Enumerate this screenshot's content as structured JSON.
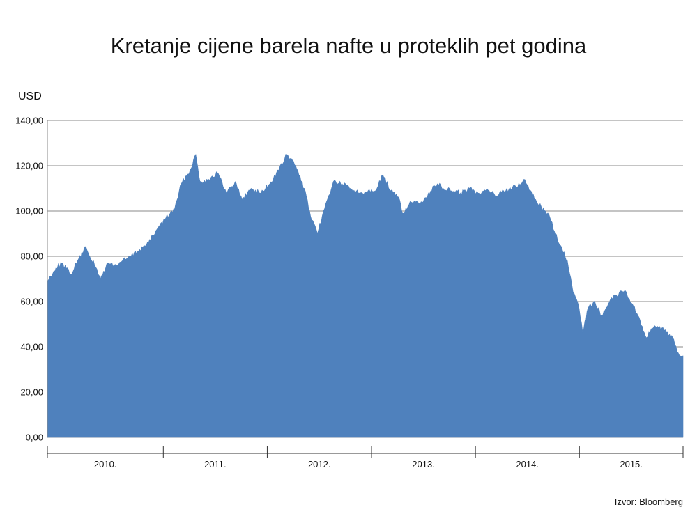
{
  "title": "Kretanje cijene barela nafte u proteklih pet godina",
  "source": "Izvor: Bloomberg",
  "chart_data": {
    "type": "area",
    "title": "Kretanje cijene barela nafte u proteklih pet godina",
    "ylabel": "USD",
    "xlabel": "",
    "ylim": [
      0,
      140
    ],
    "yticks": [
      "0,00",
      "20,00",
      "40,00",
      "60,00",
      "80,00",
      "100,00",
      "120,00",
      "140,00"
    ],
    "xlim": [
      "2009-11-20",
      "2015-12-31"
    ],
    "year_labels": [
      "2010.",
      "2011.",
      "2012.",
      "2013.",
      "2014.",
      "2015."
    ],
    "year_boundaries": [
      "2010-01-01",
      "2011-01-01",
      "2012-01-01",
      "2013-01-01",
      "2014-01-01",
      "2015-01-01"
    ],
    "grid": true,
    "fill_color": "#4f81bd",
    "series": [
      {
        "x": [
          "2009-11-20",
          "2009-12-20",
          "2010-01-10",
          "2010-02-10",
          "2010-03-10",
          "2010-04-05",
          "2010-05-05",
          "2010-05-25",
          "2010-06-20",
          "2010-07-20",
          "2010-08-10",
          "2010-09-10",
          "2010-10-10",
          "2010-11-10",
          "2010-12-10",
          "2011-01-10",
          "2011-02-10",
          "2011-03-05",
          "2011-04-05",
          "2011-04-25",
          "2011-05-10",
          "2011-06-10",
          "2011-07-10",
          "2011-08-10",
          "2011-09-10",
          "2011-10-05",
          "2011-11-05",
          "2011-12-10",
          "2012-01-10",
          "2012-02-10",
          "2012-03-10",
          "2012-04-10",
          "2012-05-10",
          "2012-06-05",
          "2012-06-25",
          "2012-07-20",
          "2012-08-20",
          "2012-09-20",
          "2012-10-20",
          "2012-11-20",
          "2012-12-20",
          "2013-01-20",
          "2013-02-10",
          "2013-03-10",
          "2013-04-10",
          "2013-04-20",
          "2013-05-20",
          "2013-06-20",
          "2013-07-20",
          "2013-08-20",
          "2013-09-10",
          "2013-10-10",
          "2013-11-10",
          "2013-12-10",
          "2014-01-10",
          "2014-02-10",
          "2014-03-10",
          "2014-04-10",
          "2014-05-10",
          "2014-06-10",
          "2014-06-20",
          "2014-07-20",
          "2014-08-20",
          "2014-09-20",
          "2014-10-20",
          "2014-11-20",
          "2014-12-10",
          "2014-12-31",
          "2015-01-13",
          "2015-01-31",
          "2015-02-20",
          "2015-03-20",
          "2015-04-20",
          "2015-05-10",
          "2015-06-10",
          "2015-07-10",
          "2015-08-10",
          "2015-08-24",
          "2015-09-10",
          "2015-10-10",
          "2015-11-10",
          "2015-11-25",
          "2015-12-10",
          "2015-12-31"
        ],
        "y": [
          69,
          75,
          77,
          72,
          79,
          84,
          76,
          70,
          77,
          76,
          78,
          80,
          83,
          86,
          92,
          97,
          101,
          112,
          118,
          125,
          113,
          114,
          117,
          108,
          113,
          105,
          110,
          108,
          112,
          118,
          125,
          120,
          110,
          96,
          90,
          101,
          113,
          112,
          110,
          108,
          109,
          110,
          116,
          109,
          105,
          99,
          104,
          103,
          108,
          112,
          110,
          109,
          108,
          110,
          108,
          110,
          107,
          109,
          110,
          112,
          114,
          107,
          102,
          97,
          86,
          78,
          64,
          57,
          46,
          57,
          60,
          54,
          61,
          63,
          65,
          58,
          49,
          44,
          48,
          49,
          45,
          44,
          38,
          36
        ]
      }
    ]
  }
}
